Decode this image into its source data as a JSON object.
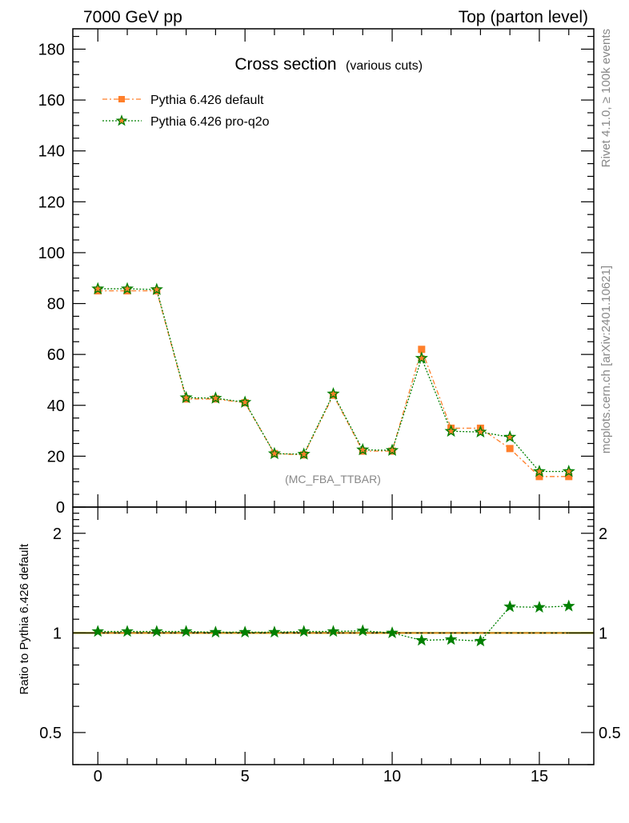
{
  "header": {
    "left": "7000 GeV pp",
    "right": "Top (parton level)"
  },
  "side_labels": {
    "rivet": "Rivet 4.1.0, ≥ 100k events",
    "mcplots": "mcplots.cern.ch [arXiv:2401.10621]"
  },
  "colors": {
    "default": "#ff7f2a",
    "proq2o": "#008000",
    "band": "#ffff66"
  },
  "chart_data": [
    {
      "type": "line",
      "title": "Cross section",
      "subtitle": "(various cuts)",
      "annotation": "(MC_FBA_TTBAR)",
      "xlabel": "",
      "ylabel": "",
      "xlim": [
        -0.85,
        16.85
      ],
      "ylim": [
        0,
        188
      ],
      "yticks": [
        0,
        20,
        40,
        60,
        80,
        100,
        120,
        140,
        160,
        180
      ],
      "ytick_labels": [
        "0",
        "20",
        "40",
        "60",
        "80",
        "100",
        "120",
        "140",
        "160",
        "180"
      ],
      "legend_position": "top-left",
      "x": [
        0,
        1,
        2,
        3,
        4,
        5,
        6,
        7,
        8,
        9,
        10,
        11,
        12,
        13,
        14,
        15,
        16
      ],
      "series": [
        {
          "name": "Pythia 6.426 default",
          "marker": "square",
          "line": "dash-dot",
          "values": [
            85,
            85,
            85,
            42.5,
            42.5,
            41,
            21,
            20.5,
            44,
            22,
            22,
            62,
            31,
            31,
            23,
            12,
            12
          ]
        },
        {
          "name": "Pythia 6.426 pro-q2o",
          "marker": "star",
          "line": "dotted",
          "values": [
            85.8,
            85.8,
            85.5,
            43,
            42.8,
            41.2,
            21,
            20.8,
            44.5,
            22.5,
            22.3,
            58.5,
            29.8,
            29.5,
            27.5,
            14,
            14
          ]
        }
      ]
    },
    {
      "type": "line",
      "title": "",
      "xlabel": "",
      "ylabel": "Ratio to Pythia 6.426 default",
      "xlim": [
        -0.85,
        16.85
      ],
      "ylim": [
        0.4,
        2.4
      ],
      "yscale": "log",
      "yticks": [
        0.5,
        1,
        2
      ],
      "ytick_labels": [
        "0.5",
        "1",
        "2"
      ],
      "xticks": [
        0,
        5,
        10,
        15
      ],
      "xtick_labels": [
        "0",
        "5",
        "10",
        "15"
      ],
      "x": [
        0,
        1,
        2,
        3,
        4,
        5,
        6,
        7,
        8,
        9,
        10,
        11,
        12,
        13,
        14,
        15,
        16
      ],
      "series": [
        {
          "name": "Pythia 6.426 default",
          "values": [
            1,
            1,
            1,
            1,
            1,
            1,
            1,
            1,
            1,
            1,
            1,
            1,
            1,
            1,
            1,
            1,
            1
          ]
        },
        {
          "name": "Pythia 6.426 pro-q2o",
          "values": [
            1.01,
            1.01,
            1.01,
            1.01,
            1.005,
            1.005,
            1.005,
            1.01,
            1.01,
            1.015,
            1.0,
            0.95,
            0.955,
            0.945,
            1.2,
            1.195,
            1.205
          ]
        }
      ]
    }
  ]
}
